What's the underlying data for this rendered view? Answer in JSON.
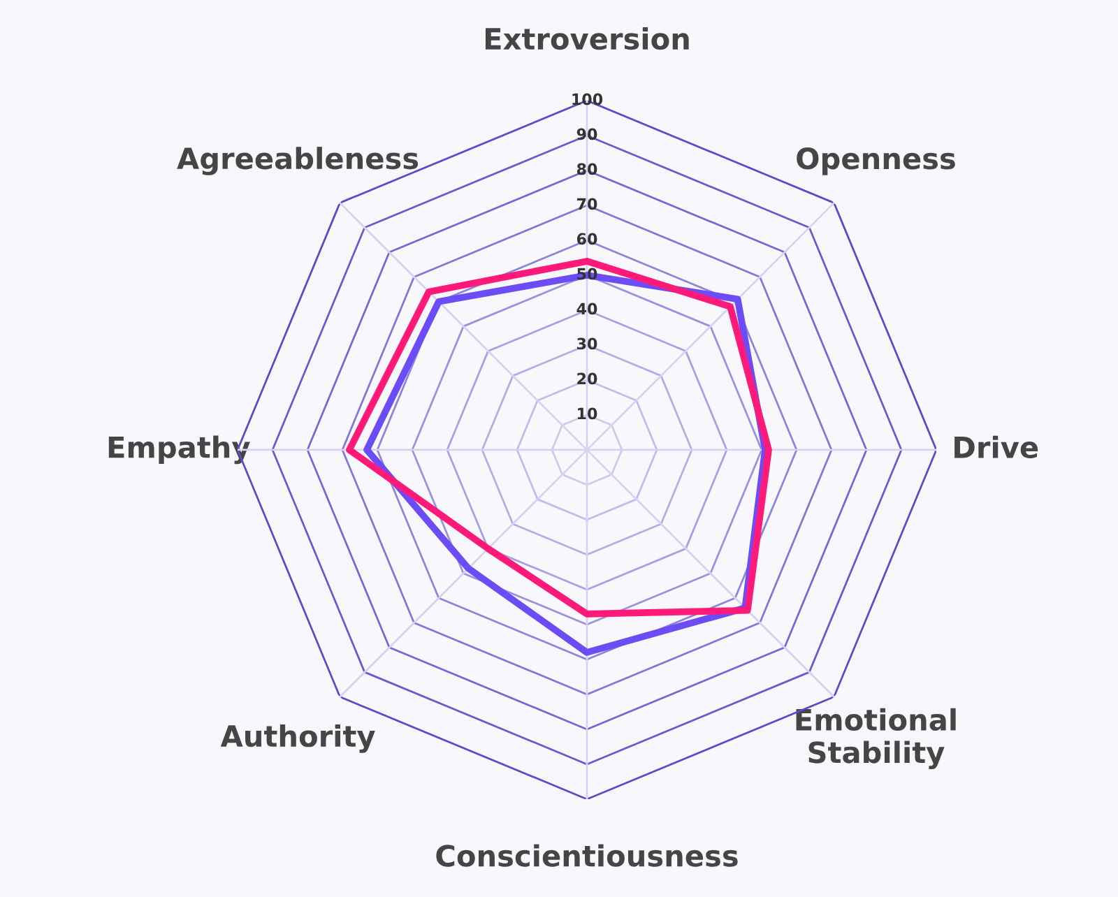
{
  "chart_data": {
    "type": "radar",
    "categories": [
      "Extroversion",
      "Openness",
      "Drive",
      "Emotional\nStability",
      "Conscientiousness",
      "Authority",
      "Empathy",
      "Agreeableness"
    ],
    "series": [
      {
        "color": "#6b4cf6",
        "values": [
          50,
          61,
          51,
          64,
          58,
          48,
          63,
          60
        ]
      },
      {
        "color": "#ff1a7a",
        "values": [
          54,
          58,
          52,
          65,
          47,
          40,
          68,
          64
        ]
      }
    ],
    "ylim": [
      0,
      100
    ],
    "yticks": [
      10,
      20,
      30,
      40,
      50,
      60,
      70,
      80,
      90,
      100
    ],
    "grid": true
  }
}
